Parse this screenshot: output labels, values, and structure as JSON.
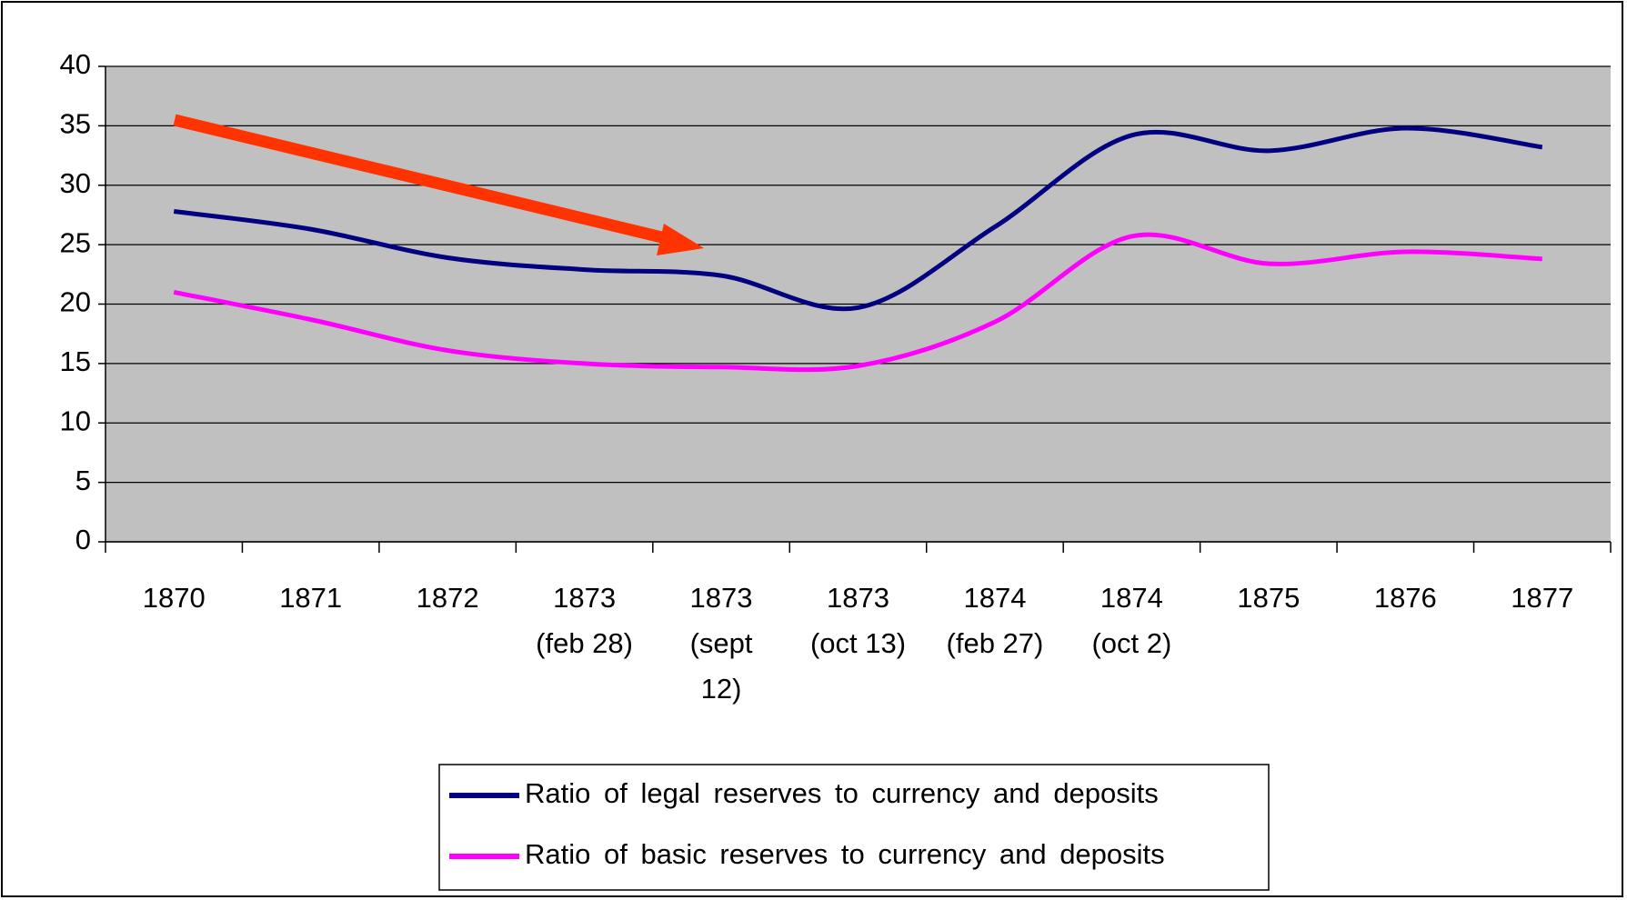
{
  "chart_data": {
    "type": "line",
    "categories": [
      "1870",
      "1871",
      "1872",
      "1873 (feb 28)",
      "1873 (sept 12)",
      "1873 (oct 13)",
      "1874 (feb 27)",
      "1874 (oct 2)",
      "1875",
      "1876",
      "1877"
    ],
    "series": [
      {
        "name": "Ratio of legal reserves to currency and deposits",
        "color": "#000080",
        "values": [
          27.8,
          26.3,
          23.9,
          22.9,
          22.4,
          19.7,
          26.5,
          34.2,
          32.9,
          34.8,
          33.2
        ]
      },
      {
        "name": "Ratio of basic reserves to currency and deposits",
        "color": "#ff00ff",
        "values": [
          21.0,
          18.7,
          16.1,
          15.0,
          14.7,
          14.8,
          18.5,
          25.7,
          23.4,
          24.4,
          23.8
        ]
      }
    ],
    "ylim": [
      0,
      40
    ],
    "yticks": [
      0,
      5,
      10,
      15,
      20,
      25,
      30,
      35,
      40
    ],
    "grid": true,
    "legend": "bottom"
  }
}
